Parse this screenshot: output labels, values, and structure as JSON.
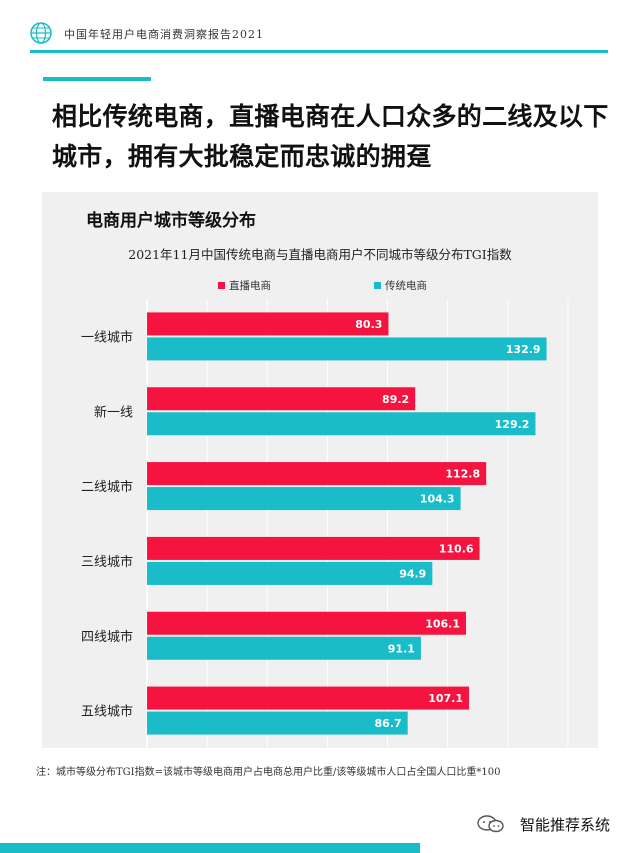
{
  "header": {
    "report_title": "中国年轻用户电商消费洞察报告2021"
  },
  "headline": "相比传统电商，直播电商在人口众多的二线及以下城市，拥有大批稳定而忠诚的拥趸",
  "panel": {
    "title": "电商用户城市等级分布"
  },
  "chart_data": {
    "type": "bar",
    "orientation": "horizontal",
    "title": "2021年11月中国传统电商与直播电商用户不同城市等级分布TGI指数",
    "categories": [
      "一线城市",
      "新一线",
      "二线城市",
      "三线城市",
      "四线城市",
      "五线城市"
    ],
    "series": [
      {
        "name": "直播电商",
        "color": "#f5133f",
        "values": [
          80.3,
          89.2,
          112.8,
          110.6,
          106.1,
          107.1
        ]
      },
      {
        "name": "传统电商",
        "color": "#19bcc8",
        "values": [
          132.9,
          129.2,
          104.3,
          94.9,
          91.1,
          86.7
        ]
      }
    ],
    "xlim": [
      0,
      150
    ],
    "grid": true,
    "legend_position": "top"
  },
  "footnote": "注：城市等级分布TGI指数=该城市等级电商用户占电商总用户比重/该等级城市人口占全国人口比重*100",
  "brand": {
    "name": "智能推荐系统"
  }
}
